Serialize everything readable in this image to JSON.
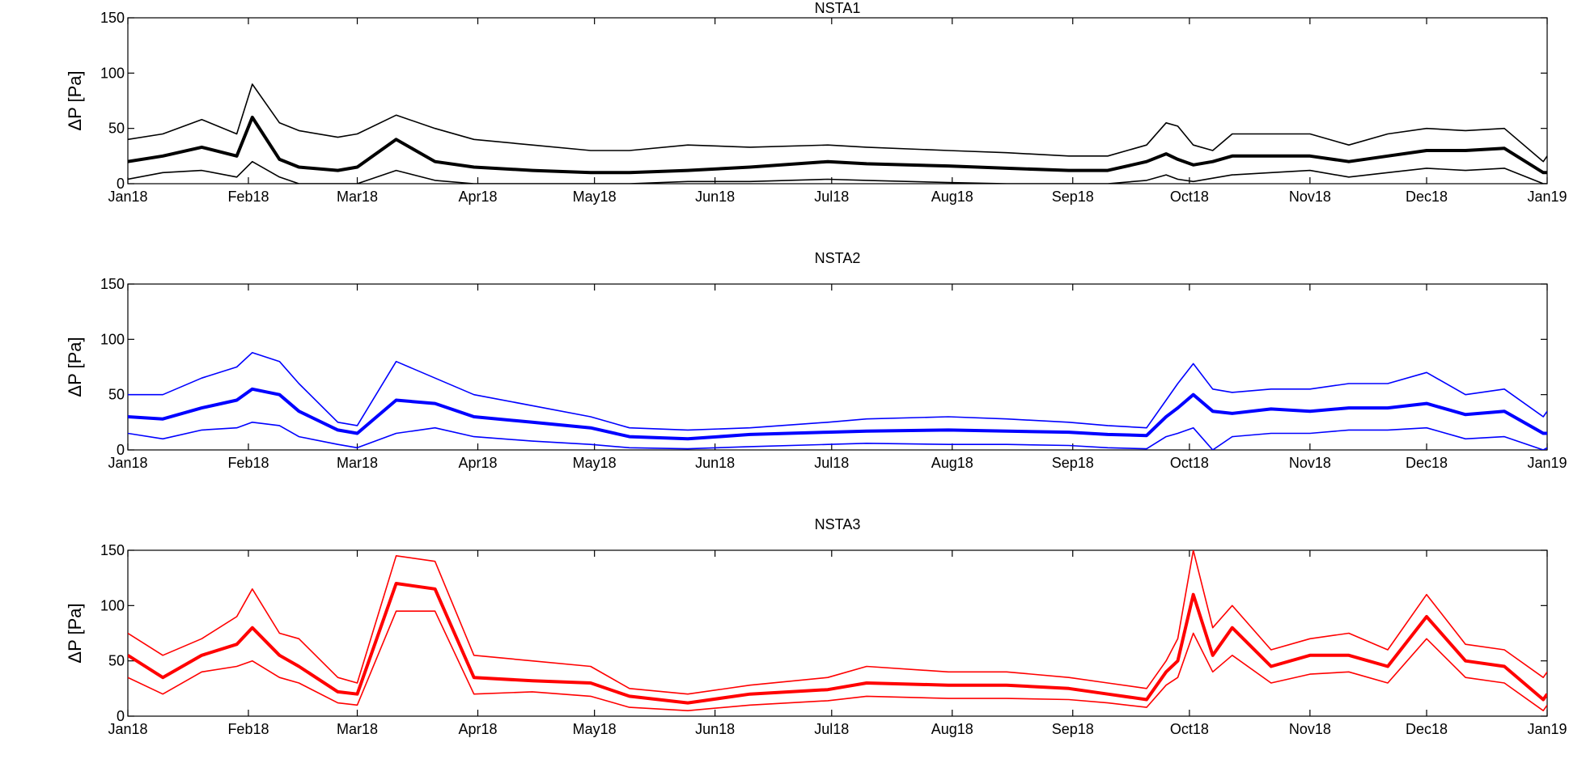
{
  "chart_data": [
    {
      "type": "line",
      "title": "NSTA1",
      "ylabel": "ΔP [Pa]",
      "xlabel": "",
      "ylim": [
        0,
        150
      ],
      "yticks": [
        0,
        50,
        100,
        150
      ],
      "x_range": [
        "2018-01-01",
        "2019-01-01"
      ],
      "x_ticks": [
        "Jan18",
        "Feb18",
        "Mar18",
        "Apr18",
        "May18",
        "Jun18",
        "Jul18",
        "Aug18",
        "Sep18",
        "Oct18",
        "Nov18",
        "Dec18",
        "Jan19"
      ],
      "grid": false,
      "color": "#000000",
      "x": [
        "2018-01-01",
        "2018-01-10",
        "2018-01-20",
        "2018-01-29",
        "2018-02-02",
        "2018-02-09",
        "2018-02-14",
        "2018-02-24",
        "2018-03-01",
        "2018-03-11",
        "2018-03-21",
        "2018-03-31",
        "2018-04-15",
        "2018-04-30",
        "2018-05-10",
        "2018-05-25",
        "2018-06-10",
        "2018-06-30",
        "2018-07-10",
        "2018-07-31",
        "2018-08-15",
        "2018-08-31",
        "2018-09-10",
        "2018-09-20",
        "2018-09-25",
        "2018-09-28",
        "2018-10-02",
        "2018-10-07",
        "2018-10-12",
        "2018-10-22",
        "2018-11-01",
        "2018-11-11",
        "2018-11-21",
        "2018-12-01",
        "2018-12-11",
        "2018-12-21",
        "2018-12-31",
        "2019-01-01"
      ],
      "series": [
        {
          "values": [
            40,
            45,
            58,
            45,
            90,
            55,
            48,
            42,
            45,
            62,
            50,
            40,
            35,
            30,
            30,
            35,
            33,
            35,
            33,
            30,
            28,
            25,
            25,
            35,
            55,
            52,
            35,
            30,
            45,
            45,
            45,
            35,
            45,
            50,
            48,
            50,
            20,
            25
          ]
        },
        {
          "values": [
            20,
            25,
            33,
            25,
            60,
            22,
            15,
            12,
            15,
            40,
            20,
            15,
            12,
            10,
            10,
            12,
            15,
            20,
            18,
            16,
            14,
            12,
            12,
            20,
            27,
            22,
            17,
            20,
            25,
            25,
            25,
            20,
            25,
            30,
            30,
            32,
            10,
            10
          ]
        },
        {
          "values": [
            4,
            10,
            12,
            6,
            20,
            6,
            0,
            0,
            0,
            12,
            3,
            0,
            0,
            0,
            0,
            2,
            2,
            4,
            3,
            1,
            0,
            0,
            0,
            3,
            8,
            4,
            2,
            5,
            8,
            10,
            12,
            6,
            10,
            14,
            12,
            14,
            0,
            0
          ]
        }
      ]
    },
    {
      "type": "line",
      "title": "NSTA2",
      "ylabel": "ΔP [Pa]",
      "xlabel": "",
      "ylim": [
        0,
        150
      ],
      "yticks": [
        0,
        50,
        100,
        150
      ],
      "x_range": [
        "2018-01-01",
        "2019-01-01"
      ],
      "x_ticks": [
        "Jan18",
        "Feb18",
        "Mar18",
        "Apr18",
        "May18",
        "Jun18",
        "Jul18",
        "Aug18",
        "Sep18",
        "Oct18",
        "Nov18",
        "Dec18",
        "Jan19"
      ],
      "grid": false,
      "color": "#0000ff",
      "x": [
        "2018-01-01",
        "2018-01-10",
        "2018-01-20",
        "2018-01-29",
        "2018-02-02",
        "2018-02-09",
        "2018-02-14",
        "2018-02-24",
        "2018-03-01",
        "2018-03-11",
        "2018-03-21",
        "2018-03-31",
        "2018-04-15",
        "2018-04-30",
        "2018-05-10",
        "2018-05-25",
        "2018-06-10",
        "2018-06-30",
        "2018-07-10",
        "2018-07-31",
        "2018-08-15",
        "2018-08-31",
        "2018-09-10",
        "2018-09-20",
        "2018-09-25",
        "2018-09-28",
        "2018-10-02",
        "2018-10-07",
        "2018-10-12",
        "2018-10-22",
        "2018-11-01",
        "2018-11-11",
        "2018-11-21",
        "2018-12-01",
        "2018-12-11",
        "2018-12-21",
        "2018-12-31",
        "2019-01-01"
      ],
      "series": [
        {
          "values": [
            50,
            50,
            65,
            75,
            88,
            80,
            60,
            25,
            22,
            80,
            65,
            50,
            40,
            30,
            20,
            18,
            20,
            25,
            28,
            30,
            28,
            25,
            22,
            20,
            45,
            60,
            78,
            55,
            52,
            55,
            55,
            60,
            60,
            70,
            50,
            55,
            30,
            35
          ]
        },
        {
          "values": [
            30,
            28,
            38,
            45,
            55,
            50,
            35,
            18,
            15,
            45,
            42,
            30,
            25,
            20,
            12,
            10,
            14,
            16,
            17,
            18,
            17,
            16,
            14,
            13,
            30,
            38,
            50,
            35,
            33,
            37,
            35,
            38,
            38,
            42,
            32,
            35,
            15,
            15
          ]
        },
        {
          "values": [
            15,
            10,
            18,
            20,
            25,
            22,
            12,
            5,
            2,
            15,
            20,
            12,
            8,
            5,
            2,
            1,
            3,
            5,
            6,
            5,
            5,
            4,
            2,
            1,
            12,
            15,
            20,
            0,
            12,
            15,
            15,
            18,
            18,
            20,
            10,
            12,
            0,
            2
          ]
        }
      ]
    },
    {
      "type": "line",
      "title": "NSTA3",
      "ylabel": "ΔP [Pa]",
      "xlabel": "",
      "ylim": [
        0,
        150
      ],
      "yticks": [
        0,
        50,
        100,
        150
      ],
      "x_range": [
        "2018-01-01",
        "2019-01-01"
      ],
      "x_ticks": [
        "Jan18",
        "Feb18",
        "Mar18",
        "Apr18",
        "May18",
        "Jun18",
        "Jul18",
        "Aug18",
        "Sep18",
        "Oct18",
        "Nov18",
        "Dec18",
        "Jan19"
      ],
      "grid": false,
      "color": "#ff0000",
      "x": [
        "2018-01-01",
        "2018-01-10",
        "2018-01-20",
        "2018-01-29",
        "2018-02-02",
        "2018-02-09",
        "2018-02-14",
        "2018-02-24",
        "2018-03-01",
        "2018-03-11",
        "2018-03-21",
        "2018-03-31",
        "2018-04-15",
        "2018-04-30",
        "2018-05-10",
        "2018-05-25",
        "2018-06-10",
        "2018-06-30",
        "2018-07-10",
        "2018-07-31",
        "2018-08-15",
        "2018-08-31",
        "2018-09-10",
        "2018-09-20",
        "2018-09-25",
        "2018-09-28",
        "2018-10-02",
        "2018-10-07",
        "2018-10-12",
        "2018-10-22",
        "2018-11-01",
        "2018-11-11",
        "2018-11-21",
        "2018-12-01",
        "2018-12-11",
        "2018-12-21",
        "2018-12-31",
        "2019-01-01"
      ],
      "series": [
        {
          "values": [
            75,
            55,
            70,
            90,
            115,
            75,
            70,
            35,
            30,
            145,
            140,
            55,
            50,
            45,
            25,
            20,
            28,
            35,
            45,
            40,
            40,
            35,
            30,
            25,
            50,
            70,
            150,
            80,
            100,
            60,
            70,
            75,
            60,
            110,
            65,
            60,
            35,
            40
          ]
        },
        {
          "values": [
            55,
            35,
            55,
            65,
            80,
            55,
            45,
            22,
            20,
            120,
            115,
            35,
            32,
            30,
            18,
            12,
            20,
            24,
            30,
            28,
            28,
            25,
            20,
            15,
            40,
            50,
            110,
            55,
            80,
            45,
            55,
            55,
            45,
            90,
            50,
            45,
            15,
            20
          ]
        },
        {
          "values": [
            35,
            20,
            40,
            45,
            50,
            35,
            30,
            12,
            10,
            95,
            95,
            20,
            22,
            18,
            8,
            5,
            10,
            14,
            18,
            16,
            16,
            15,
            12,
            8,
            28,
            35,
            75,
            40,
            55,
            30,
            38,
            40,
            30,
            70,
            35,
            30,
            5,
            10
          ]
        }
      ]
    }
  ]
}
